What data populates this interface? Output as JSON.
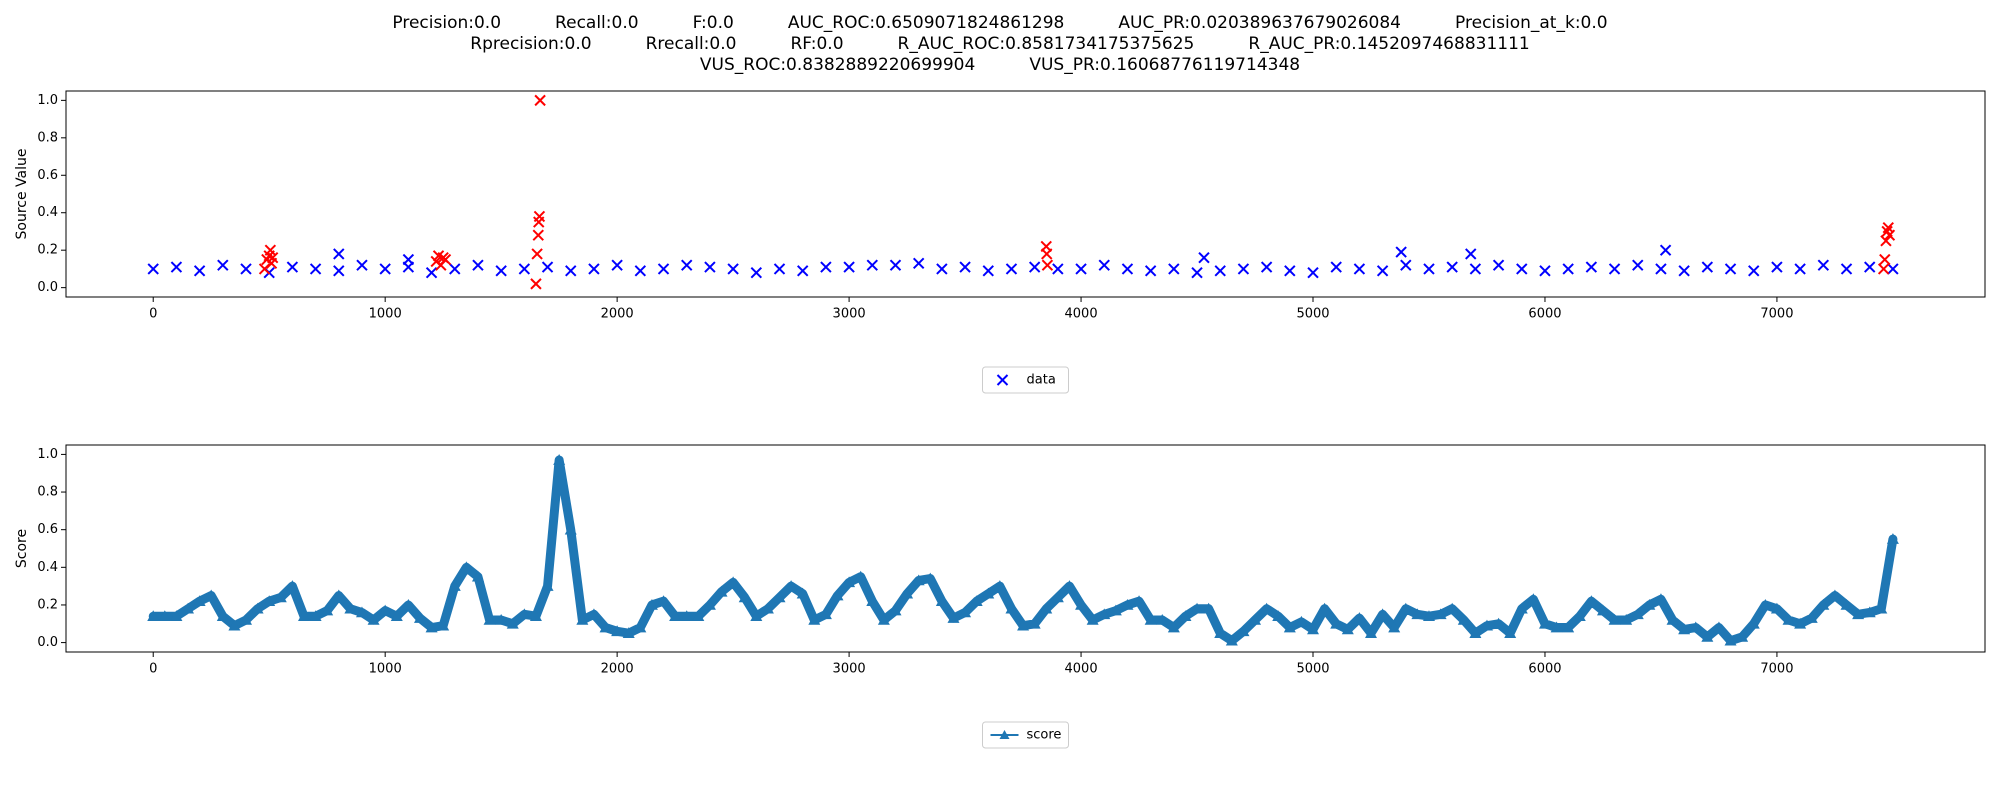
{
  "chart_data": [
    {
      "type": "scatter",
      "title": [
        "Precision:0.0          Recall:0.0          F:0.0          AUC_ROC:0.6509071824861298          AUC_PR:0.020389637679026084          Precision_at_k:0.0",
        "Rprecision:0.0          Rrecall:0.0          RF:0.0          R_AUC_ROC:0.8581734175375625          R_AUC_PR:0.1452097468831111",
        "VUS_ROC:0.8382889220699904          VUS_PR:0.16068776119714348"
      ],
      "y_label": "Source Value",
      "marker": "x",
      "legend": "below",
      "xlim": [
        -376,
        7897
      ],
      "xticks": [
        0,
        1000,
        2000,
        3000,
        4000,
        5000,
        6000,
        7000
      ],
      "ylim": [
        -0.05,
        1.05
      ],
      "yticks": [
        {
          "value": 0,
          "label": "0.0"
        },
        0.2,
        0.4,
        0.6,
        0.8,
        {
          "value": 1,
          "label": "1.0"
        }
      ],
      "series": [
        {
          "name": "data",
          "color": "#0000ff",
          "x": [
            0,
            100,
            200,
            300,
            400,
            500,
            600,
            700,
            800,
            900,
            1000,
            1100,
            1200,
            1300,
            1400,
            1500,
            1600,
            1700,
            1800,
            1900,
            2000,
            2100,
            2200,
            2300,
            2400,
            2500,
            2600,
            2700,
            2800,
            2900,
            3000,
            3100,
            3200,
            3300,
            3400,
            3500,
            3600,
            3700,
            3800,
            3900,
            4000,
            4100,
            4200,
            4300,
            4400,
            4500,
            4600,
            4700,
            4800,
            4900,
            5000,
            5100,
            5200,
            5300,
            5400,
            5500,
            5600,
            5700,
            5800,
            5900,
            6000,
            6100,
            6200,
            6300,
            6400,
            6500,
            6600,
            6700,
            6800,
            6900,
            7000,
            7100,
            7200,
            7300,
            7400,
            7500,
            800,
            1100,
            4530,
            5380,
            5680,
            6520
          ],
          "values": [
            0.1,
            0.11,
            0.09,
            0.12,
            0.1,
            0.08,
            0.11,
            0.1,
            0.09,
            0.12,
            0.1,
            0.11,
            0.08,
            0.1,
            0.12,
            0.09,
            0.1,
            0.11,
            0.09,
            0.1,
            0.12,
            0.09,
            0.1,
            0.12,
            0.11,
            0.1,
            0.08,
            0.1,
            0.09,
            0.11,
            0.11,
            0.12,
            0.12,
            0.13,
            0.1,
            0.11,
            0.09,
            0.1,
            0.11,
            0.1,
            0.1,
            0.12,
            0.1,
            0.09,
            0.1,
            0.08,
            0.09,
            0.1,
            0.11,
            0.09,
            0.08,
            0.11,
            0.1,
            0.09,
            0.12,
            0.1,
            0.11,
            0.1,
            0.12,
            0.1,
            0.09,
            0.1,
            0.11,
            0.1,
            0.12,
            0.1,
            0.09,
            0.11,
            0.1,
            0.09,
            0.11,
            0.1,
            0.12,
            0.1,
            0.11,
            0.1,
            0.18,
            0.15,
            0.16,
            0.19,
            0.18,
            0.2
          ]
        },
        {
          "color": "#ff0000",
          "x": [
            480,
            490,
            500,
            505,
            510,
            515,
            1220,
            1230,
            1240,
            1250,
            1260,
            1650,
            1655,
            1660,
            1662,
            1665,
            1668,
            3850,
            3852,
            3855,
            7460,
            7465,
            7470,
            7475,
            7480,
            7485
          ],
          "values": [
            0.1,
            0.15,
            0.17,
            0.2,
            0.13,
            0.16,
            0.14,
            0.17,
            0.12,
            0.16,
            0.15,
            0.02,
            0.18,
            0.28,
            0.35,
            0.38,
            1.0,
            0.22,
            0.18,
            0.12,
            0.1,
            0.15,
            0.25,
            0.3,
            0.32,
            0.28
          ]
        }
      ]
    },
    {
      "type": "line",
      "y_label": "Score",
      "marker": "^",
      "legend": "below",
      "xlim": [
        -376,
        7897
      ],
      "xticks": [
        0,
        1000,
        2000,
        3000,
        4000,
        5000,
        6000,
        7000
      ],
      "ylim": [
        -0.05,
        1.05
      ],
      "yticks": [
        {
          "value": 0,
          "label": "0.0"
        },
        0.2,
        0.4,
        0.6,
        0.8,
        {
          "value": 1,
          "label": "1.0"
        }
      ],
      "series": [
        {
          "name": "score",
          "color": "#1f77b4",
          "x": [
            0,
            50,
            100,
            150,
            200,
            250,
            300,
            350,
            400,
            450,
            500,
            550,
            600,
            650,
            700,
            750,
            800,
            850,
            900,
            950,
            1000,
            1050,
            1100,
            1150,
            1200,
            1250,
            1300,
            1350,
            1400,
            1450,
            1500,
            1550,
            1600,
            1650,
            1700,
            1750,
            1800,
            1850,
            1900,
            1950,
            2000,
            2050,
            2100,
            2150,
            2200,
            2250,
            2300,
            2350,
            2400,
            2450,
            2500,
            2550,
            2600,
            2650,
            2700,
            2750,
            2800,
            2850,
            2900,
            2950,
            3000,
            3050,
            3100,
            3150,
            3200,
            3250,
            3300,
            3350,
            3400,
            3450,
            3500,
            3550,
            3600,
            3650,
            3700,
            3750,
            3800,
            3850,
            3900,
            3950,
            4000,
            4050,
            4100,
            4150,
            4200,
            4250,
            4300,
            4350,
            4400,
            4450,
            4500,
            4550,
            4600,
            4650,
            4700,
            4750,
            4800,
            4850,
            4900,
            4950,
            5000,
            5050,
            5100,
            5150,
            5200,
            5250,
            5300,
            5350,
            5400,
            5450,
            5500,
            5550,
            5600,
            5650,
            5700,
            5750,
            5800,
            5850,
            5900,
            5950,
            6000,
            6050,
            6100,
            6150,
            6200,
            6250,
            6300,
            6350,
            6400,
            6450,
            6500,
            6550,
            6600,
            6650,
            6700,
            6750,
            6800,
            6850,
            6900,
            6950,
            7000,
            7050,
            7100,
            7150,
            7200,
            7250,
            7300,
            7350,
            7400,
            7450,
            7500
          ],
          "values": [
            0.14,
            0.14,
            0.14,
            0.18,
            0.22,
            0.25,
            0.14,
            0.09,
            0.12,
            0.18,
            0.22,
            0.24,
            0.3,
            0.14,
            0.14,
            0.17,
            0.25,
            0.18,
            0.16,
            0.12,
            0.17,
            0.14,
            0.2,
            0.13,
            0.08,
            0.09,
            0.3,
            0.4,
            0.35,
            0.12,
            0.12,
            0.1,
            0.15,
            0.14,
            0.3,
            0.97,
            0.6,
            0.12,
            0.15,
            0.08,
            0.06,
            0.05,
            0.08,
            0.2,
            0.22,
            0.14,
            0.14,
            0.14,
            0.2,
            0.27,
            0.32,
            0.24,
            0.14,
            0.18,
            0.24,
            0.3,
            0.26,
            0.12,
            0.15,
            0.25,
            0.32,
            0.35,
            0.22,
            0.12,
            0.17,
            0.26,
            0.33,
            0.34,
            0.22,
            0.13,
            0.16,
            0.22,
            0.26,
            0.3,
            0.18,
            0.09,
            0.1,
            0.18,
            0.24,
            0.3,
            0.2,
            0.12,
            0.15,
            0.17,
            0.2,
            0.22,
            0.12,
            0.12,
            0.08,
            0.14,
            0.18,
            0.18,
            0.05,
            0.01,
            0.06,
            0.12,
            0.18,
            0.14,
            0.08,
            0.11,
            0.07,
            0.18,
            0.1,
            0.07,
            0.13,
            0.05,
            0.15,
            0.08,
            0.18,
            0.15,
            0.14,
            0.15,
            0.18,
            0.12,
            0.05,
            0.09,
            0.1,
            0.05,
            0.18,
            0.23,
            0.1,
            0.08,
            0.08,
            0.14,
            0.22,
            0.17,
            0.12,
            0.12,
            0.15,
            0.2,
            0.23,
            0.12,
            0.07,
            0.08,
            0.03,
            0.08,
            0.01,
            0.03,
            0.1,
            0.2,
            0.18,
            0.12,
            0.1,
            0.13,
            0.2,
            0.25,
            0.2,
            0.15,
            0.16,
            0.18,
            0.55
          ]
        }
      ]
    }
  ]
}
